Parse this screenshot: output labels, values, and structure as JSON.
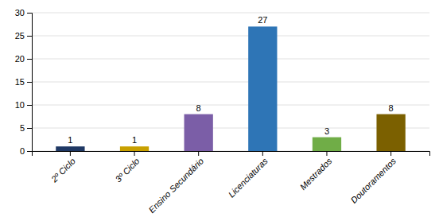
{
  "chart_data": {
    "type": "bar",
    "categories": [
      "2º Ciclo",
      "3º Ciclo",
      "Ensino Secundário",
      "Licenciaturas",
      "Mestrados",
      "Doutoramentos"
    ],
    "values": [
      1,
      1,
      8,
      27,
      3,
      8
    ],
    "colors": [
      "#1F3864",
      "#C8A000",
      "#7B5EA7",
      "#2E75B6",
      "#70AD47",
      "#7B6000"
    ],
    "ylim": [
      0,
      30
    ],
    "yticks": [
      0,
      5,
      10,
      15,
      20,
      25,
      30
    ],
    "grid": true,
    "data_labels": true
  }
}
